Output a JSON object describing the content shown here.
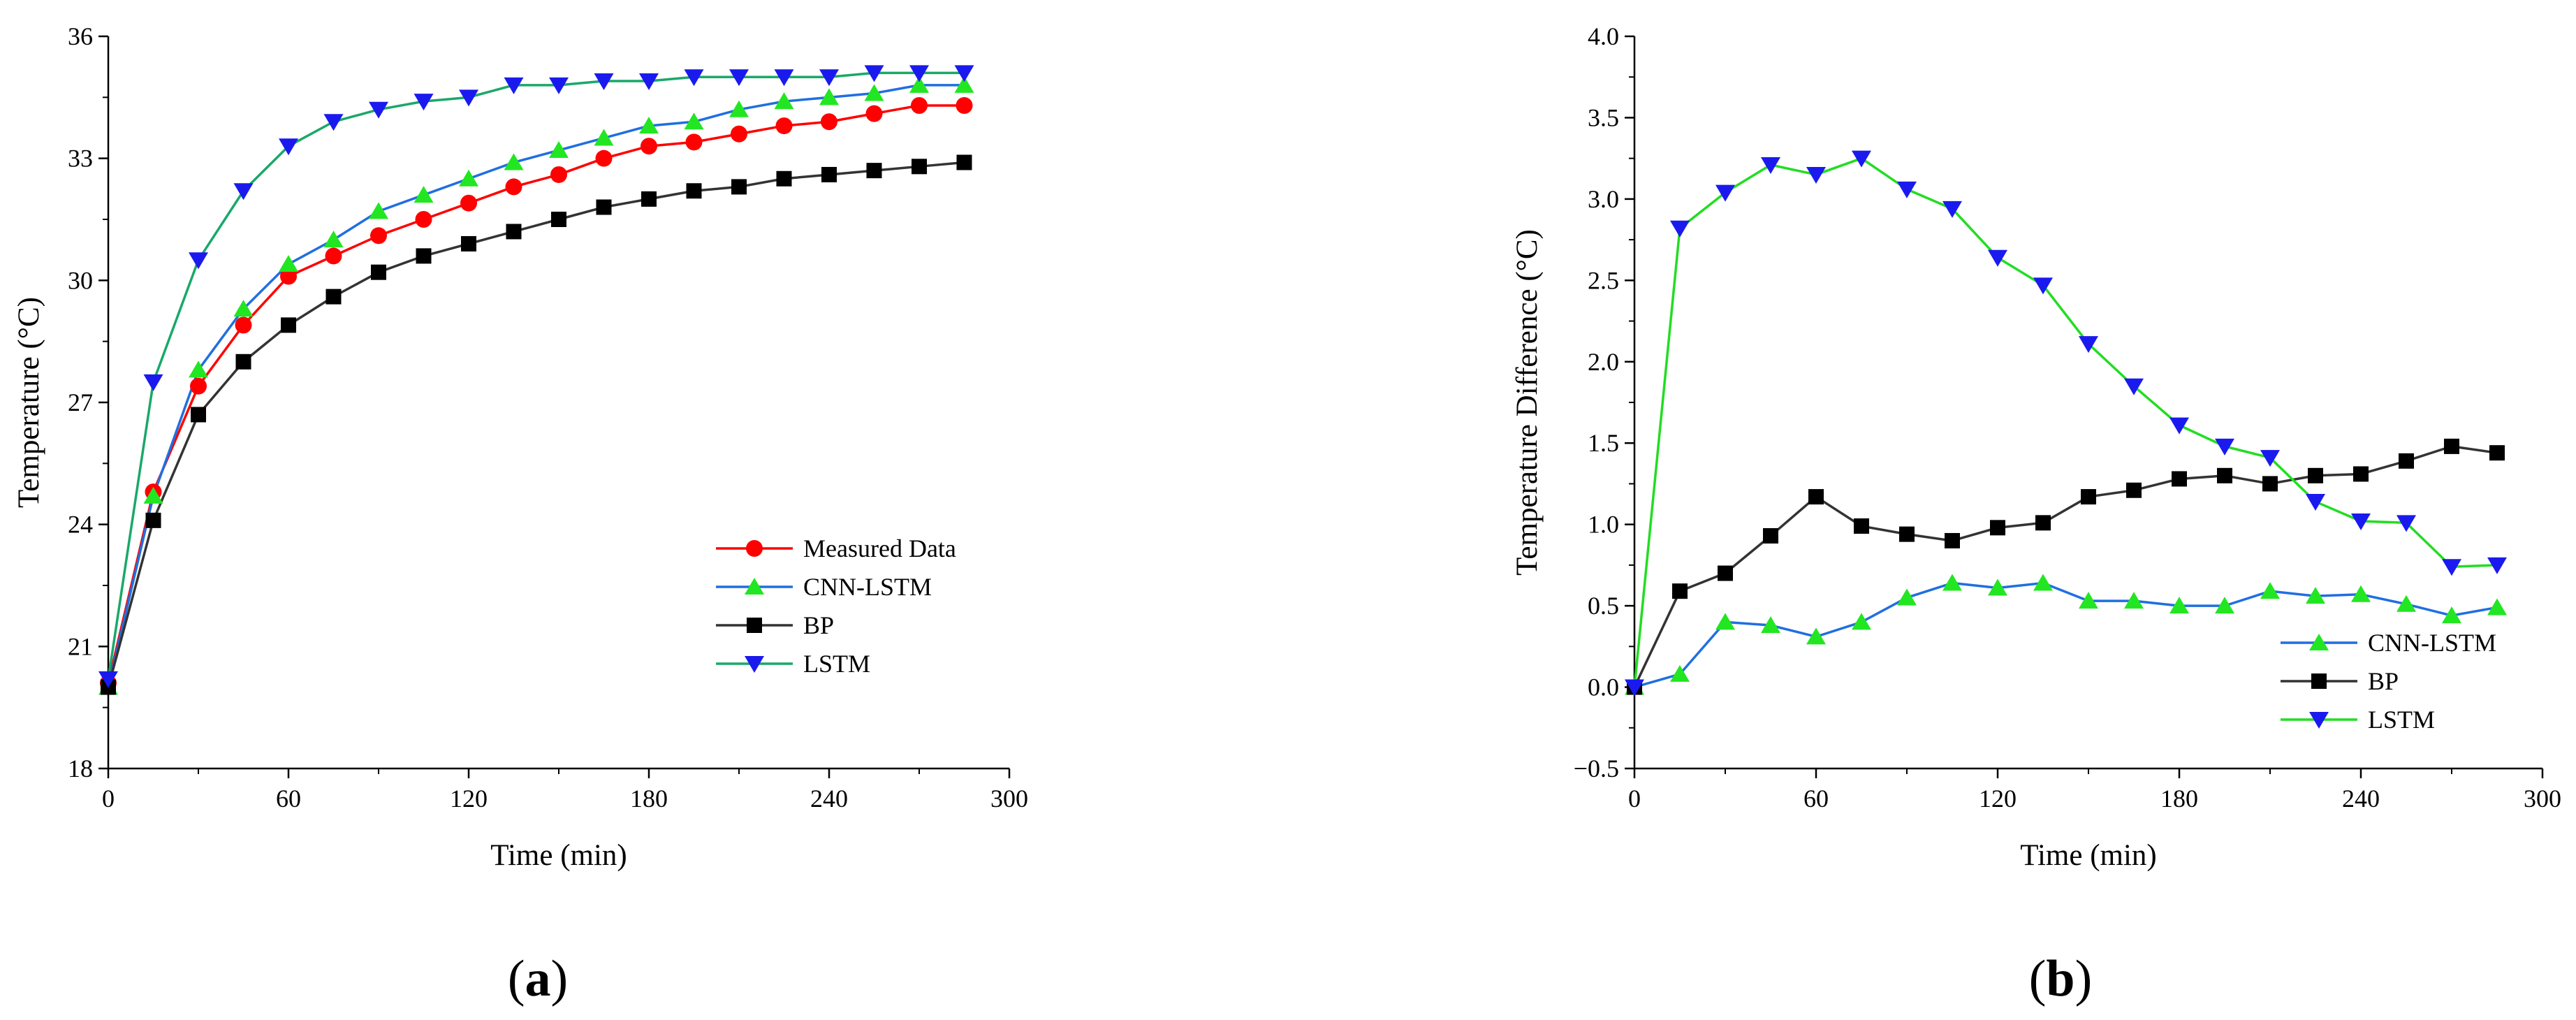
{
  "chart_data": [
    {
      "type": "line",
      "panel_label": "a",
      "xlabel": "Time (min)",
      "ylabel": "Temperature (°C)",
      "xlim": [
        0,
        300
      ],
      "ylim": [
        18,
        36
      ],
      "xticks": [
        "0",
        "60",
        "120",
        "180",
        "240",
        "300"
      ],
      "yticks": [
        "18",
        "21",
        "24",
        "27",
        "30",
        "33",
        "36"
      ],
      "grid": false,
      "legend_position": "lower-right",
      "x": [
        0,
        15,
        30,
        45,
        60,
        75,
        90,
        105,
        120,
        135,
        150,
        165,
        180,
        195,
        210,
        225,
        240,
        255,
        270,
        285
      ],
      "series": [
        {
          "name": "Measured Data",
          "line_color": "#ff0000",
          "marker_color": "#ff0000",
          "marker": "circle",
          "values": [
            20.1,
            24.8,
            27.4,
            28.9,
            30.1,
            30.6,
            31.1,
            31.5,
            31.9,
            32.3,
            32.6,
            33.0,
            33.3,
            33.4,
            33.6,
            33.8,
            33.9,
            34.1,
            34.3,
            34.3
          ]
        },
        {
          "name": "CNN-LSTM",
          "line_color": "#1f6fe0",
          "marker_color": "#22e622",
          "marker": "triangle-up",
          "values": [
            20.0,
            24.7,
            27.8,
            29.3,
            30.4,
            31.0,
            31.7,
            32.1,
            32.5,
            32.9,
            33.2,
            33.5,
            33.8,
            33.9,
            34.2,
            34.4,
            34.5,
            34.6,
            34.8,
            34.8
          ]
        },
        {
          "name": "BP",
          "line_color": "#333333",
          "marker_color": "#000000",
          "marker": "square",
          "values": [
            20.0,
            24.1,
            26.7,
            28.0,
            28.9,
            29.6,
            30.2,
            30.6,
            30.9,
            31.2,
            31.5,
            31.8,
            32.0,
            32.2,
            32.3,
            32.5,
            32.6,
            32.7,
            32.8,
            32.9
          ]
        },
        {
          "name": "LSTM",
          "line_color": "#1aa86a",
          "marker_color": "#1a1aee",
          "marker": "triangle-down",
          "values": [
            20.2,
            27.5,
            30.5,
            32.2,
            33.3,
            33.9,
            34.2,
            34.4,
            34.5,
            34.8,
            34.8,
            34.9,
            34.9,
            35.0,
            35.0,
            35.0,
            35.0,
            35.1,
            35.1,
            35.1
          ]
        }
      ]
    },
    {
      "type": "line",
      "panel_label": "b",
      "xlabel": "Time (min)",
      "ylabel": "Temperature Difference (°C)",
      "xlim": [
        0,
        300
      ],
      "ylim": [
        -0.5,
        4.0
      ],
      "xticks": [
        "0",
        "60",
        "120",
        "180",
        "240",
        "300"
      ],
      "yticks": [
        "−0.5",
        "0.0",
        "0.5",
        "1.0",
        "1.5",
        "2.0",
        "2.5",
        "3.0",
        "3.5",
        "4.0"
      ],
      "grid": false,
      "legend_position": "lower-right",
      "x": [
        0,
        15,
        30,
        45,
        60,
        75,
        90,
        105,
        120,
        135,
        150,
        165,
        180,
        195,
        210,
        225,
        240,
        255,
        270,
        285
      ],
      "series": [
        {
          "name": "CNN-LSTM",
          "line_color": "#1f6fe0",
          "marker_color": "#22e622",
          "marker": "triangle-up",
          "values": [
            0.0,
            0.08,
            0.4,
            0.38,
            0.31,
            0.4,
            0.55,
            0.64,
            0.61,
            0.64,
            0.53,
            0.53,
            0.5,
            0.5,
            0.59,
            0.56,
            0.57,
            0.51,
            0.44,
            0.49
          ]
        },
        {
          "name": "BP",
          "line_color": "#333333",
          "marker_color": "#000000",
          "marker": "square",
          "values": [
            0.0,
            0.59,
            0.7,
            0.93,
            1.17,
            0.99,
            0.94,
            0.9,
            0.98,
            1.01,
            1.17,
            1.21,
            1.28,
            1.3,
            1.25,
            1.3,
            1.31,
            1.39,
            1.48,
            1.44
          ]
        },
        {
          "name": "LSTM",
          "line_color": "#22dd22",
          "marker_color": "#1a1aee",
          "marker": "triangle-down",
          "values": [
            0.0,
            2.82,
            3.04,
            3.21,
            3.15,
            3.25,
            3.06,
            2.94,
            2.64,
            2.47,
            2.11,
            1.85,
            1.61,
            1.48,
            1.41,
            1.14,
            1.02,
            1.01,
            0.74,
            0.75
          ]
        }
      ]
    }
  ]
}
